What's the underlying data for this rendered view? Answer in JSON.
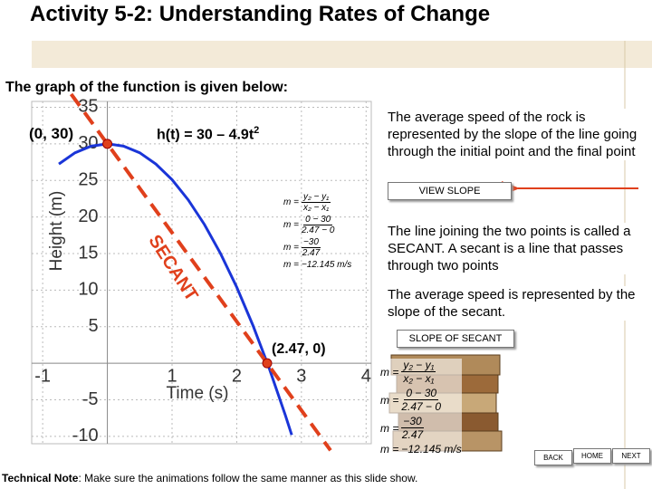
{
  "title": "Activity 5-2: Understanding Rates of Change",
  "intro": "The graph of the function is given below:",
  "function_label": {
    "text": "h(t) = 30 – 4.9t",
    "superscript": "2"
  },
  "chart_data": {
    "type": "line",
    "x_label": "Time (s)",
    "y_label": "Height (m)",
    "x": [
      -0.75,
      -0.5,
      -0.25,
      0,
      0.25,
      0.5,
      0.75,
      1,
      1.25,
      1.5,
      1.75,
      2,
      2.25,
      2.5,
      2.75,
      2.85
    ],
    "series": [
      {
        "color": "#1a35d8",
        "values": [
          27.24,
          28.78,
          29.69,
          30,
          29.69,
          28.78,
          27.24,
          25.1,
          22.34,
          18.98,
          14.99,
          10.4,
          5.19,
          -0.63,
          -7.06,
          -9.8
        ]
      }
    ],
    "xlim": [
      -1.17,
      4.08
    ],
    "ylim": [
      -11,
      35.8
    ],
    "xticks": [
      -1,
      1,
      2,
      3,
      4
    ],
    "yticks": [
      -10,
      -5,
      5,
      10,
      15,
      20,
      25,
      30,
      35
    ],
    "grid": true,
    "points": [
      {
        "label": "(0, 30)",
        "x": 0,
        "y": 30
      },
      {
        "label": "(2.47, 0)",
        "x": 2.47,
        "y": 0
      }
    ],
    "secant": {
      "label": "SECANT",
      "color": "#e0401c"
    }
  },
  "formula": [
    {
      "lhs": "m =",
      "num": "y₂ − y₁",
      "den": "x₂ − x₁"
    },
    {
      "lhs": "m =",
      "num": "0 − 30",
      "den": "2.47 − 0"
    },
    {
      "lhs": "m =",
      "num": "−30",
      "den": "2.47"
    },
    {
      "lhs": "m =",
      "value": "−12.145 m/s"
    }
  ],
  "notes": [
    "The average speed of the rock is represented by the slope of the line going through the initial point and the final point",
    "The line joining the two points is called a SECANT.  A secant is a line that passes through two points",
    "The average speed is represented by the slope of the secant."
  ],
  "buttons": {
    "view_slope": "VIEW SLOPE",
    "slope_of_secant": "SLOPE OF SECANT",
    "back": "BACK",
    "home": "HOME",
    "next": "NEXT"
  },
  "technical_note": {
    "label": "Technical Note",
    "text": ": Make sure the animations follow the same manner as this slide show."
  }
}
